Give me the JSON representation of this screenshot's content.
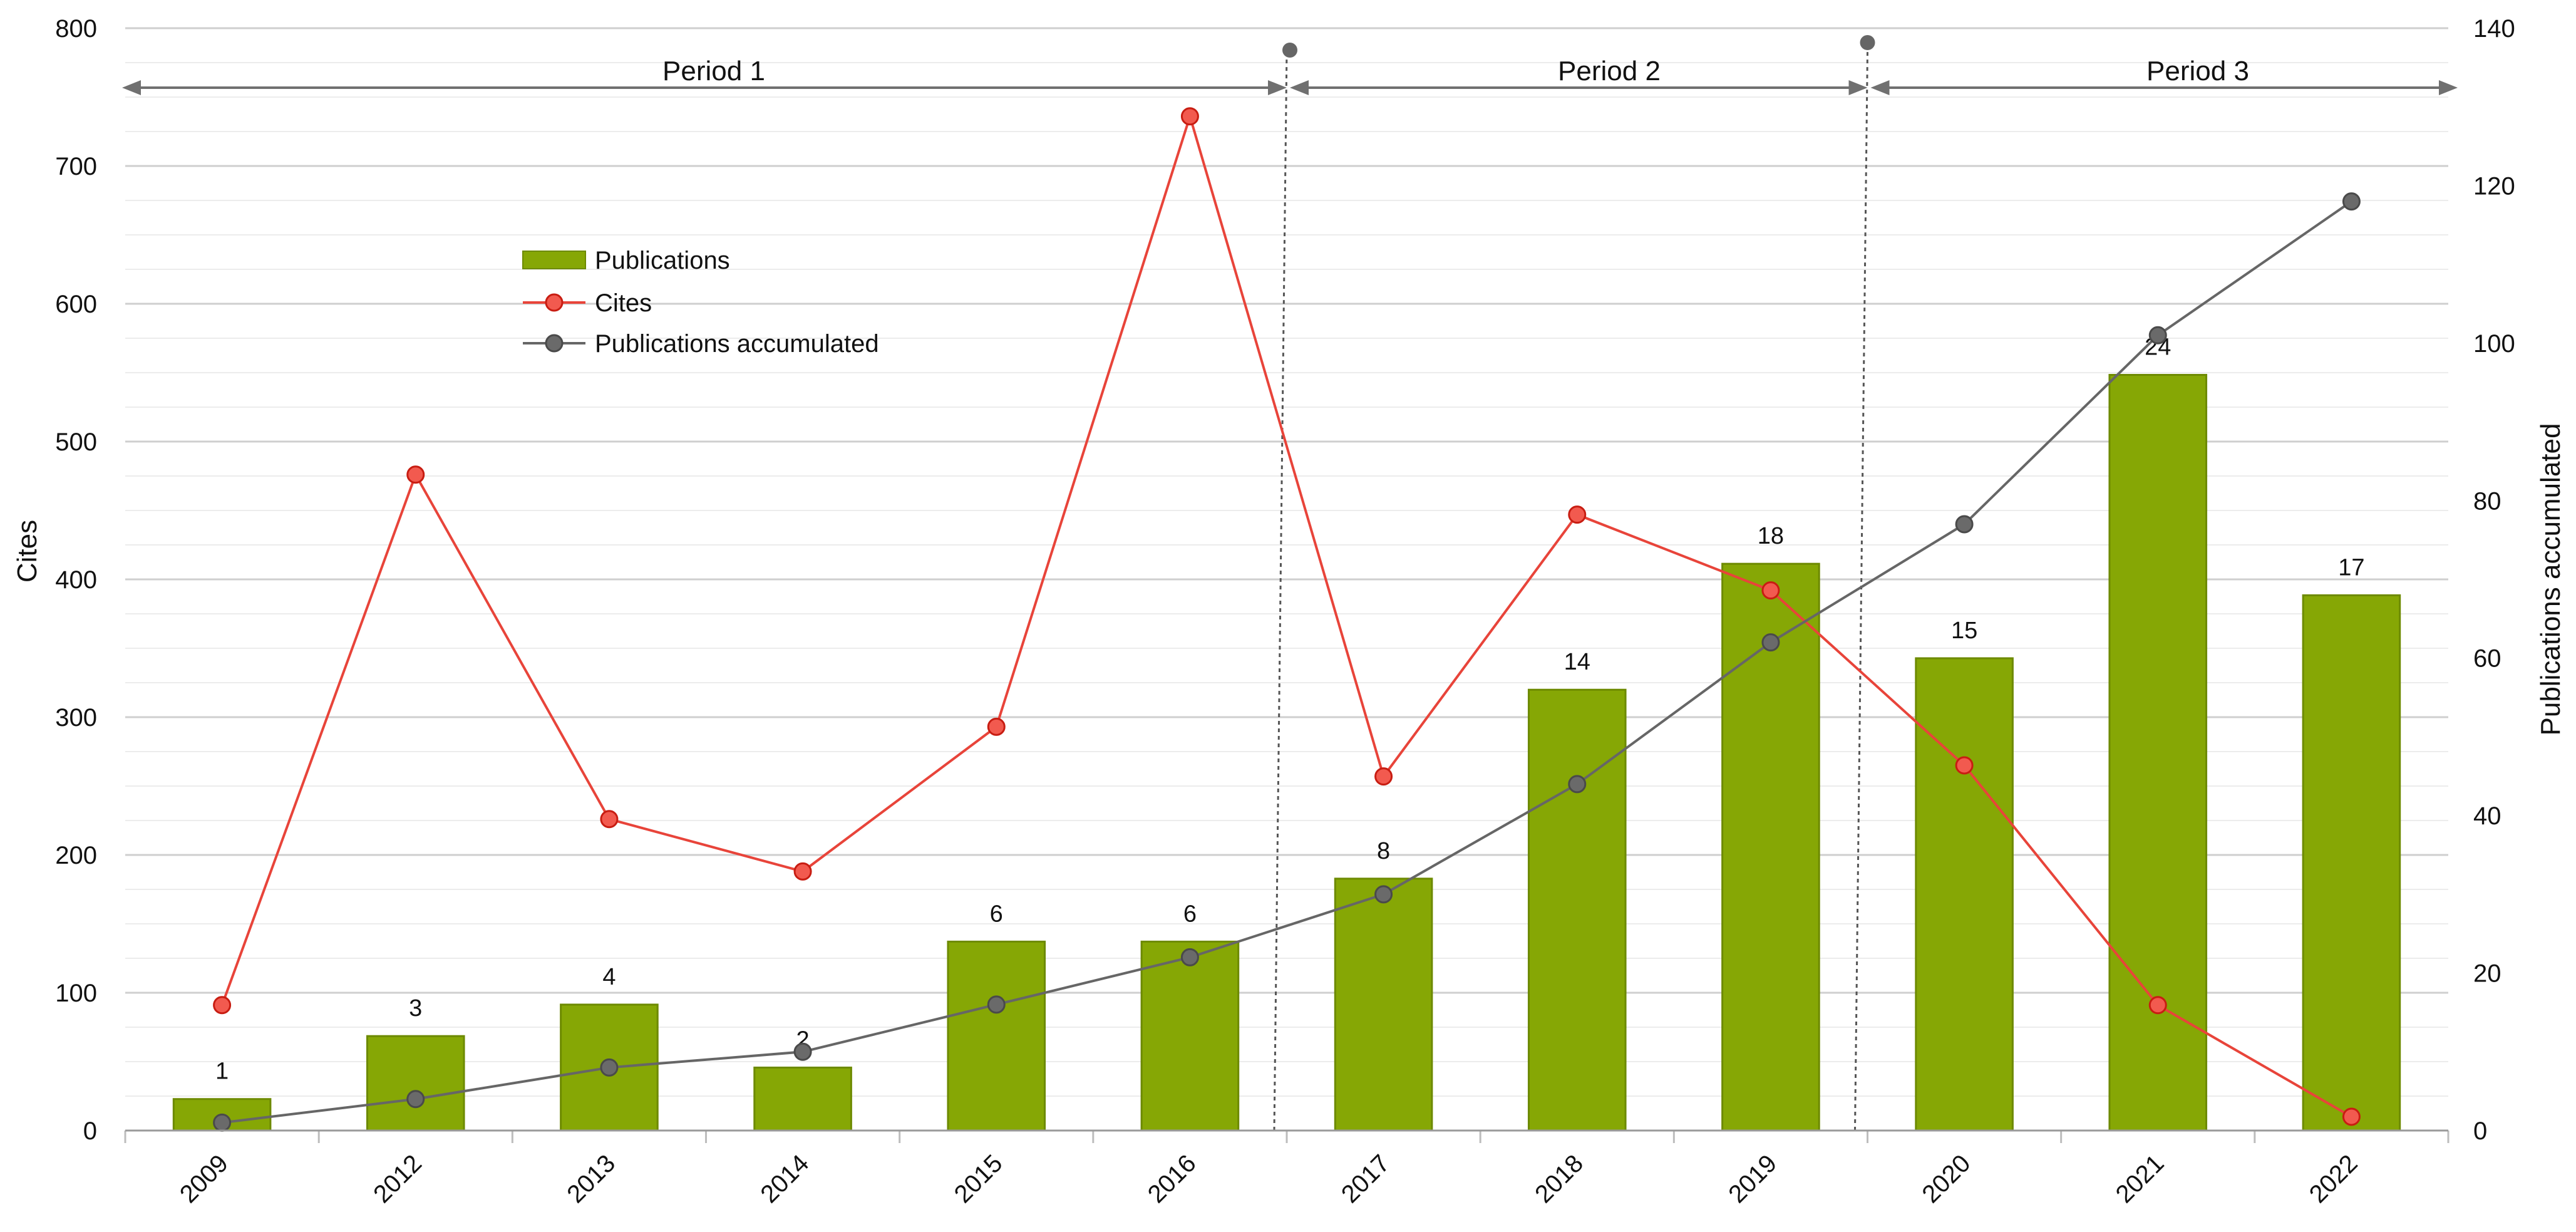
{
  "chart_data": {
    "type": "bar",
    "categories": [
      "2009",
      "2012",
      "2013",
      "2014",
      "2015",
      "2016",
      "2017",
      "2018",
      "2019",
      "2020",
      "2021",
      "2022"
    ],
    "series": [
      {
        "name": "Publications",
        "kind": "bar",
        "axis": "left",
        "values": [
          1,
          3,
          4,
          2,
          6,
          6,
          8,
          14,
          18,
          15,
          24,
          17
        ],
        "color": "#86a705"
      },
      {
        "name": "Cites",
        "kind": "line",
        "axis": "left",
        "values": [
          91,
          476,
          226,
          188,
          293,
          736,
          257,
          447,
          392,
          265,
          91,
          10
        ],
        "color": "#e8443a"
      },
      {
        "name": "Publications accumulated",
        "kind": "line",
        "axis": "right",
        "values": [
          1,
          4,
          8,
          10,
          16,
          22,
          30,
          44,
          62,
          77,
          101,
          118
        ],
        "color": "#666666"
      }
    ],
    "bar_labels": [
      "1",
      "3",
      "4",
      "2",
      "6",
      "6",
      "8",
      "14",
      "18",
      "15",
      "24",
      "17"
    ],
    "ylabel": "Cites",
    "y2label": "Publications accumulated",
    "ylim": [
      0,
      800
    ],
    "y2lim": [
      0,
      140
    ],
    "yticks": [
      "0",
      "100",
      "200",
      "300",
      "400",
      "500",
      "600",
      "700",
      "800"
    ],
    "y2ticks": [
      "0",
      "20",
      "40",
      "60",
      "80",
      "100",
      "120",
      "140"
    ],
    "periods": [
      {
        "label": "Period 1",
        "from": "2009",
        "to": "2016"
      },
      {
        "label": "Period 2",
        "from": "2017",
        "to": "2019"
      },
      {
        "label": "Period 3",
        "from": "2020",
        "to": "2022"
      }
    ],
    "legend": {
      "placement": "upper-left-inside",
      "entries": [
        "Publications",
        "Cites",
        "Publications accumulated"
      ]
    },
    "grid": true
  }
}
